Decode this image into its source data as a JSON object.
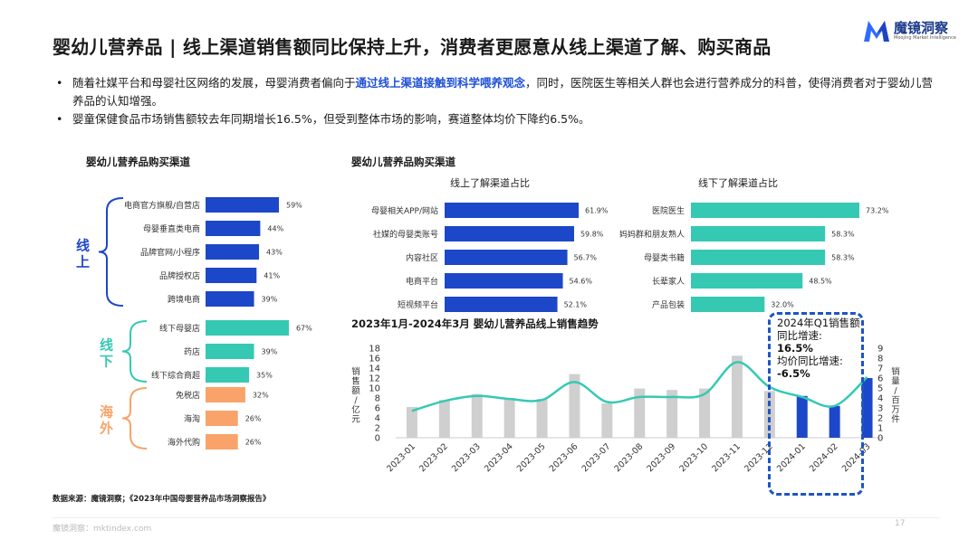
{
  "header": {
    "title": "婴幼儿营养品 | 线上渠道销售额同比保持上升，消费者更愿意从线上渠道了解、购买商品",
    "logo_name": "魔镜洞察",
    "logo_sub": "Moojing Market Intelligence"
  },
  "bullets": [
    {
      "pre": "随着社媒平台和母婴社区网络的发展，母婴消费者偏向于",
      "highlight": "通过线上渠道接触到科学喂养观念",
      "post": "，同时，医院医生等相关人群也会进行营养成分的科普，使得消费者对于婴幼儿营养品的认知增强。"
    },
    {
      "pre": "婴童保健食品市场销售额较去年同期增长16.5%，但受到整体市场的影响，赛道整体均价下降约6.5%。",
      "highlight": "",
      "post": ""
    }
  ],
  "sections": {
    "left_title": "婴幼儿营养品购买渠道",
    "mid_title": "婴幼儿营养品购买渠道",
    "online_sub": "线上了解渠道占比",
    "offline_sub": "线下了解渠道占比",
    "trend_title": "2023年1月-2024年3月  婴幼儿营养品线上销售趋势"
  },
  "callout": {
    "line1": "2024年Q1销售额同比增速:",
    "value1": "16.5%",
    "line2": "均价同比增速:",
    "value2": "-6.5%"
  },
  "source": "数据来源：魔镜洞察；《2023年中国母婴营养品市场洞察报告》",
  "footer": "魔镜洞察：mktindex.com",
  "page_number": "17",
  "colors": {
    "blue": "#1d47c9",
    "teal": "#35c9b3",
    "orange": "#f9a36a",
    "gray": "#cfcfcf",
    "line": "#35c9b3"
  },
  "chart_data": [
    {
      "type": "bar",
      "orientation": "horizontal",
      "title": "婴幼儿营养品购买渠道",
      "groups": [
        {
          "name": "线上",
          "color": "#1d47c9",
          "categories": [
            "电商官方旗舰/自营店",
            "母婴垂直类电商",
            "品牌官网/小程序",
            "品牌授权店",
            "跨境电商"
          ],
          "values": [
            59,
            44,
            43,
            41,
            39
          ],
          "labels": [
            "59%",
            "44%",
            "43%",
            "41%",
            "39%"
          ]
        },
        {
          "name": "线下",
          "color": "#35c9b3",
          "categories": [
            "线下母婴店",
            "药店",
            "线下综合商超"
          ],
          "values": [
            67,
            39,
            35
          ],
          "labels": [
            "67%",
            "39%",
            "35%"
          ]
        },
        {
          "name": "海外",
          "color": "#f9a36a",
          "categories": [
            "免税店",
            "海淘",
            "海外代购"
          ],
          "values": [
            32,
            26,
            26
          ],
          "labels": [
            "32%",
            "26%",
            "26%"
          ]
        }
      ]
    },
    {
      "type": "bar",
      "orientation": "horizontal",
      "title": "线上了解渠道占比",
      "categories": [
        "母婴相关APP/网站",
        "社媒的母婴类账号",
        "内容社区",
        "电商平台",
        "短视频平台"
      ],
      "values": [
        61.9,
        59.8,
        56.7,
        54.6,
        52.1
      ],
      "labels": [
        "61.9%",
        "59.8%",
        "56.7%",
        "54.6%",
        "52.1%"
      ]
    },
    {
      "type": "bar",
      "orientation": "horizontal",
      "title": "线下了解渠道占比",
      "categories": [
        "医院医生",
        "妈妈群和朋友熟人",
        "母婴类书籍",
        "长辈家人",
        "产品包装"
      ],
      "values": [
        73.2,
        58.3,
        58.3,
        48.5,
        32.0
      ],
      "labels": [
        "73.2%",
        "58.3%",
        "58.3%",
        "48.5%",
        "32.0%"
      ]
    },
    {
      "type": "bar",
      "title": "2023年1月-2024年3月  婴幼儿营养品线上销售趋势",
      "categories": [
        "2023-01",
        "2023-02",
        "2023-03",
        "2023-04",
        "2023-05",
        "2023-06",
        "2023-07",
        "2023-08",
        "2023-09",
        "2023-10",
        "2023-11",
        "2023-12",
        "2024-01",
        "2024-02",
        "2024-03"
      ],
      "series": [
        {
          "name": "销售额",
          "type": "bar",
          "axis": "left",
          "values": [
            6.2,
            7.6,
            8.8,
            8.0,
            7.8,
            12.8,
            6.9,
            9.9,
            9.6,
            9.9,
            16.5,
            9.4,
            8.4,
            6.4,
            12.0
          ],
          "highlight_from_index": 12
        },
        {
          "name": "销量",
          "type": "line",
          "axis": "right",
          "values": [
            2.7,
            3.7,
            4.2,
            3.9,
            3.8,
            5.6,
            3.6,
            4.1,
            4.1,
            4.4,
            7.6,
            5.1,
            4.1,
            3.2,
            6.1
          ]
        }
      ],
      "ylabel_left": "销售额/亿元",
      "ylabel_right": "销量/百万件",
      "ylim_left": [
        0,
        18
      ],
      "yticks_left": [
        "0",
        "2",
        "4",
        "6",
        "8",
        "10",
        "12",
        "14",
        "16",
        "18"
      ],
      "ylim_right": [
        0,
        9
      ],
      "yticks_right": [
        "0",
        "1",
        "2",
        "3",
        "4",
        "5",
        "6",
        "7",
        "8",
        "9"
      ],
      "grid": false
    }
  ]
}
